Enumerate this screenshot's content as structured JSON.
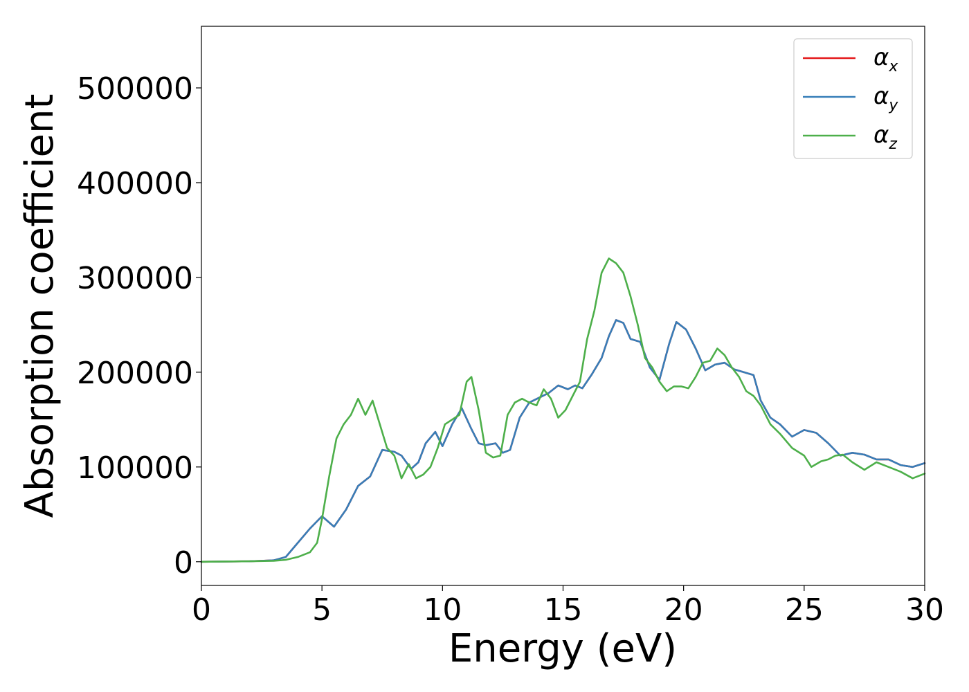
{
  "chart_data": {
    "type": "line",
    "title": "",
    "xlabel": "Energy (eV)",
    "ylabel": "Absorption coefficient",
    "xlim": [
      0,
      30
    ],
    "ylim": [
      -25000,
      565000
    ],
    "xticks": [
      0,
      5,
      10,
      15,
      20,
      25,
      30
    ],
    "xtick_labels": [
      "0",
      "5",
      "10",
      "15",
      "20",
      "25",
      "30"
    ],
    "yticks": [
      0,
      100000,
      200000,
      300000,
      400000,
      500000
    ],
    "ytick_labels": [
      "0",
      "100000",
      "200000",
      "300000",
      "400000",
      "500000"
    ],
    "grid": false,
    "legend_position": "top-right",
    "series": [
      {
        "name": "α",
        "name_subscript": "x",
        "color": "#e41a1c",
        "x": [
          0,
          2,
          3,
          3.5,
          4,
          4.5,
          5,
          5.5,
          6,
          6.5,
          7,
          7.5,
          8,
          8.3,
          8.7,
          9,
          9.3,
          9.7,
          10,
          10.4,
          10.8,
          11.2,
          11.5,
          11.8,
          12.2,
          12.5,
          12.8,
          13.2,
          13.6,
          14,
          14.4,
          14.8,
          15.2,
          15.5,
          15.8,
          16.2,
          16.6,
          16.9,
          17.2,
          17.5,
          17.8,
          18.2,
          18.6,
          19,
          19.4,
          19.7,
          20.1,
          20.5,
          20.9,
          21.3,
          21.7,
          22.1,
          22.5,
          22.9,
          23.2,
          23.6,
          24,
          24.5,
          25,
          25.5,
          26,
          26.5,
          27,
          27.5,
          28,
          28.5,
          29,
          29.5,
          30
        ],
        "y": [
          0,
          500,
          1500,
          5000,
          20000,
          35000,
          48000,
          37000,
          55000,
          80000,
          90000,
          118000,
          116000,
          112000,
          98000,
          105000,
          125000,
          137000,
          122000,
          145000,
          162000,
          140000,
          125000,
          123000,
          125000,
          115000,
          118000,
          152000,
          168000,
          173000,
          178000,
          186000,
          182000,
          186000,
          183000,
          198000,
          215000,
          238000,
          255000,
          252000,
          235000,
          232000,
          205000,
          192000,
          230000,
          253000,
          245000,
          225000,
          202000,
          208000,
          210000,
          203000,
          200000,
          197000,
          170000,
          152000,
          145000,
          132000,
          139000,
          136000,
          125000,
          112000,
          115000,
          113000,
          108000,
          108000,
          102000,
          100000,
          104000
        ]
      },
      {
        "name": "α",
        "name_subscript": "y",
        "color": "#377eb8",
        "x": [
          0,
          2,
          3,
          3.5,
          4,
          4.5,
          5,
          5.5,
          6,
          6.5,
          7,
          7.5,
          8,
          8.3,
          8.7,
          9,
          9.3,
          9.7,
          10,
          10.4,
          10.8,
          11.2,
          11.5,
          11.8,
          12.2,
          12.5,
          12.8,
          13.2,
          13.6,
          14,
          14.4,
          14.8,
          15.2,
          15.5,
          15.8,
          16.2,
          16.6,
          16.9,
          17.2,
          17.5,
          17.8,
          18.2,
          18.6,
          19,
          19.4,
          19.7,
          20.1,
          20.5,
          20.9,
          21.3,
          21.7,
          22.1,
          22.5,
          22.9,
          23.2,
          23.6,
          24,
          24.5,
          25,
          25.5,
          26,
          26.5,
          27,
          27.5,
          28,
          28.5,
          29,
          29.5,
          30
        ],
        "y": [
          0,
          500,
          1500,
          5000,
          20000,
          35000,
          48000,
          37000,
          55000,
          80000,
          90000,
          118000,
          116000,
          112000,
          98000,
          105000,
          125000,
          137000,
          122000,
          145000,
          162000,
          140000,
          125000,
          123000,
          125000,
          115000,
          118000,
          152000,
          168000,
          173000,
          178000,
          186000,
          182000,
          186000,
          183000,
          198000,
          215000,
          238000,
          255000,
          252000,
          235000,
          232000,
          205000,
          192000,
          230000,
          253000,
          245000,
          225000,
          202000,
          208000,
          210000,
          203000,
          200000,
          197000,
          170000,
          152000,
          145000,
          132000,
          139000,
          136000,
          125000,
          112000,
          115000,
          113000,
          108000,
          108000,
          102000,
          100000,
          104000
        ]
      },
      {
        "name": "α",
        "name_subscript": "z",
        "color": "#4daf4a",
        "x": [
          0,
          2,
          3,
          3.5,
          4,
          4.5,
          4.8,
          5,
          5.3,
          5.6,
          5.9,
          6.2,
          6.5,
          6.8,
          7.1,
          7.4,
          7.7,
          8,
          8.3,
          8.6,
          8.9,
          9.2,
          9.5,
          9.8,
          10.1,
          10.4,
          10.7,
          11,
          11.2,
          11.5,
          11.8,
          12.1,
          12.4,
          12.7,
          13,
          13.3,
          13.6,
          13.9,
          14.2,
          14.5,
          14.8,
          15.1,
          15.4,
          15.7,
          16,
          16.3,
          16.6,
          16.9,
          17.2,
          17.5,
          17.8,
          18.1,
          18.4,
          18.7,
          19,
          19.3,
          19.6,
          19.9,
          20.2,
          20.5,
          20.8,
          21.1,
          21.4,
          21.7,
          22,
          22.3,
          22.6,
          22.9,
          23.2,
          23.6,
          24,
          24.5,
          25,
          25.3,
          25.7,
          26,
          26.3,
          26.6,
          27,
          27.5,
          28,
          28.5,
          29,
          29.5,
          30
        ],
        "y": [
          0,
          500,
          1000,
          2000,
          5000,
          10000,
          20000,
          45000,
          90000,
          130000,
          145000,
          155000,
          172000,
          155000,
          170000,
          145000,
          120000,
          112000,
          88000,
          103000,
          88000,
          92000,
          100000,
          120000,
          145000,
          150000,
          155000,
          190000,
          195000,
          160000,
          115000,
          110000,
          112000,
          155000,
          168000,
          172000,
          168000,
          165000,
          182000,
          172000,
          152000,
          160000,
          175000,
          190000,
          235000,
          265000,
          305000,
          320000,
          315000,
          305000,
          280000,
          250000,
          215000,
          205000,
          190000,
          180000,
          185000,
          185000,
          183000,
          195000,
          210000,
          212000,
          225000,
          218000,
          205000,
          195000,
          180000,
          175000,
          165000,
          145000,
          135000,
          120000,
          112000,
          100000,
          106000,
          108000,
          112000,
          113000,
          105000,
          97000,
          105000,
          100000,
          95000,
          88000,
          93000
        ]
      }
    ]
  }
}
